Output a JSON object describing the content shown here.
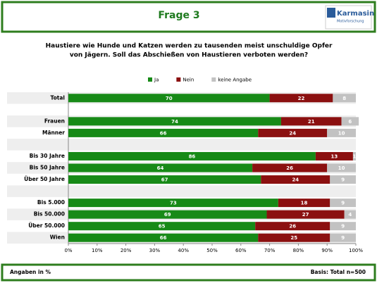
{
  "header": {
    "title": "Frage 3",
    "logo": "Karmasin",
    "logo_sub": "Motivforschung"
  },
  "chart_data": {
    "type": "stacked-bar-horizontal",
    "title_lines": [
      "Haustiere wie Hunde und Katzen werden zu tausenden meist unschuldige Opfer",
      "von Jägern. Soll das Abschießen von Haustieren verboten werden?"
    ],
    "categories": [
      "Total",
      null,
      "Frauen",
      "Männer",
      null,
      "Bis 30 Jahre",
      "Bis 50 Jahre",
      "Über 50 Jahre",
      null,
      "Bis 5.000",
      "Bis 50.000",
      "Über 50.000",
      "Wien"
    ],
    "series": [
      {
        "name": "Ja",
        "color": "#178a17",
        "values": [
          70,
          null,
          74,
          66,
          null,
          86,
          64,
          67,
          null,
          73,
          69,
          65,
          66
        ]
      },
      {
        "name": "Nein",
        "color": "#8b1010",
        "values": [
          22,
          null,
          21,
          24,
          null,
          13,
          26,
          24,
          null,
          18,
          27,
          26,
          25
        ]
      },
      {
        "name": "keine Angabe",
        "color": "#c2c2c2",
        "values": [
          8,
          null,
          6,
          10,
          null,
          1,
          10,
          9,
          null,
          9,
          4,
          9,
          9
        ]
      }
    ],
    "xlim": [
      0,
      100
    ],
    "xticks": [
      {
        "value": 0,
        "label": "0%"
      },
      {
        "value": 10,
        "label": "10%"
      },
      {
        "value": 20,
        "label": "20%"
      },
      {
        "value": 30,
        "label": "30%"
      },
      {
        "value": 40,
        "label": "40%"
      },
      {
        "value": 50,
        "label": "50%"
      },
      {
        "value": 60,
        "label": "60%"
      },
      {
        "value": 70,
        "label": "70%"
      },
      {
        "value": 80,
        "label": "80%"
      },
      {
        "value": 90,
        "label": "90%"
      },
      {
        "value": 100,
        "label": "100%"
      }
    ]
  },
  "footer": {
    "left": "Angaben in %",
    "right": "Basis: Total n=500"
  }
}
